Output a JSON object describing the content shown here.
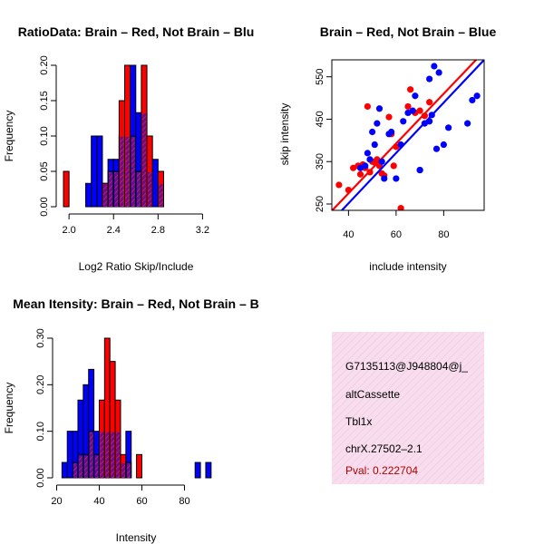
{
  "colors": {
    "red": "#ff0000",
    "blue": "#0000ff",
    "purple": "#6a0d8a",
    "hatch": "#c0187a",
    "infobox": "#f7dded",
    "pval": "#b00000"
  },
  "chart_data": [
    {
      "id": "ratio",
      "type": "bar",
      "title": "RatioData: Brain – Red, Not Brain – Blu",
      "xlabel": "Log2 Ratio Skip/Include",
      "ylabel": "Frequency",
      "xlim": [
        1.95,
        3.27
      ],
      "ylim": [
        0,
        0.2
      ],
      "xticks": [
        "2.0",
        "2.4",
        "2.8",
        "3.2"
      ],
      "yticks": [
        "0.00",
        "0.05",
        "0.10",
        "0.15",
        "0.20"
      ],
      "xtick_values": [
        2.0,
        2.4,
        2.8,
        3.2
      ],
      "ytick_values": [
        0,
        0.05,
        0.1,
        0.15,
        0.2
      ],
      "bin_width": 0.05,
      "bins_start": 1.95,
      "series": [
        {
          "name": "Brain",
          "color": "red",
          "values": [
            0.05,
            0,
            0,
            0,
            0,
            0,
            0,
            0.033,
            0.05,
            0.05,
            0.15,
            0.2,
            0.1,
            0.05,
            0.2,
            0.1,
            0,
            0.05
          ]
        },
        {
          "name": "Not Brain",
          "color": "blue",
          "values": [
            0,
            0,
            0,
            0,
            0.033,
            0.1,
            0.1,
            0.033,
            0.067,
            0.067,
            0.1,
            0.1,
            0.2,
            0.133,
            0.133,
            0.05,
            0.067,
            0.033
          ]
        }
      ]
    },
    {
      "id": "scatter",
      "type": "scatter",
      "title": "Brain – Red, Not Brain – Blue",
      "xlabel": "include intensity",
      "ylabel": "skip intensity",
      "xlim": [
        33,
        97
      ],
      "ylim": [
        235,
        590
      ],
      "xticks": [
        "40",
        "60",
        "80"
      ],
      "xtick_values": [
        40,
        60,
        80
      ],
      "yticks": [
        "250",
        "350",
        "450",
        "550"
      ],
      "ytick_values": [
        250,
        350,
        450,
        550
      ],
      "series": [
        {
          "name": "Brain",
          "color": "red",
          "x": [
            36,
            40,
            42,
            44,
            45,
            46,
            47,
            48,
            49,
            50,
            51,
            52,
            53,
            54,
            55,
            57,
            58,
            59,
            60,
            62,
            65,
            66,
            68,
            70,
            72,
            74
          ],
          "y": [
            295,
            283,
            335,
            340,
            320,
            343,
            335,
            480,
            325,
            350,
            348,
            355,
            340,
            322,
            317,
            455,
            415,
            340,
            385,
            240,
            480,
            520,
            465,
            470,
            458,
            490
          ],
          "line": [
            [
              33,
              234
            ],
            [
              97,
              610
            ]
          ]
        },
        {
          "name": "Not Brain",
          "color": "blue",
          "x": [
            45,
            47,
            48,
            49,
            50,
            51,
            52,
            53,
            54,
            55,
            57,
            58,
            60,
            62,
            63,
            65,
            67,
            68,
            70,
            72,
            74,
            75,
            76,
            77,
            78,
            80,
            82,
            90,
            92,
            94,
            70,
            74
          ],
          "y": [
            335,
            340,
            370,
            355,
            420,
            390,
            440,
            475,
            350,
            310,
            415,
            420,
            310,
            390,
            445,
            465,
            470,
            505,
            330,
            440,
            545,
            460,
            575,
            380,
            560,
            390,
            430,
            440,
            495,
            505,
            330,
            445
          ],
          "line": [
            [
              33,
              210
            ],
            [
              97,
              590
            ]
          ]
        }
      ]
    },
    {
      "id": "intensity",
      "type": "bar",
      "title": "Mean Itensity: Brain – Red, Not Brain – B",
      "xlabel": "Intensity",
      "ylabel": "Frequency",
      "xlim": [
        21.5,
        93
      ],
      "ylim": [
        0,
        0.3
      ],
      "xticks": [
        "20",
        "40",
        "60",
        "80"
      ],
      "xtick_values": [
        20,
        40,
        60,
        80
      ],
      "yticks": [
        "0.00",
        "0.10",
        "0.20",
        "0.30"
      ],
      "ytick_values": [
        0,
        0.1,
        0.2,
        0.3
      ],
      "bin_width": 2.5,
      "bins_start": 22.5,
      "series": [
        {
          "name": "Brain",
          "color": "red",
          "values": [
            0,
            0,
            0.033,
            0.05,
            0.05,
            0.1,
            0.05,
            0.167,
            0.3,
            0.25,
            0.167,
            0.05,
            0.033,
            0,
            0.05,
            0,
            0,
            0,
            0,
            0,
            0,
            0,
            0,
            0,
            0,
            0,
            0,
            0
          ]
        },
        {
          "name": "Not Brain",
          "color": "blue",
          "values": [
            0.033,
            0.1,
            0.1,
            0.167,
            0.2,
            0.233,
            0.1,
            0.1,
            0.1,
            0.1,
            0.1,
            0.033,
            0.1,
            0,
            0,
            0,
            0,
            0,
            0,
            0,
            0,
            0,
            0,
            0,
            0,
            0.033,
            0,
            0.033
          ]
        }
      ]
    }
  ],
  "info": {
    "event_id": "G7135113@J948804@j_",
    "event_type": "altCassette",
    "gene": "Tbl1x",
    "location": "chrX.27502–2.1",
    "pval": "Pval: 0.222704"
  }
}
